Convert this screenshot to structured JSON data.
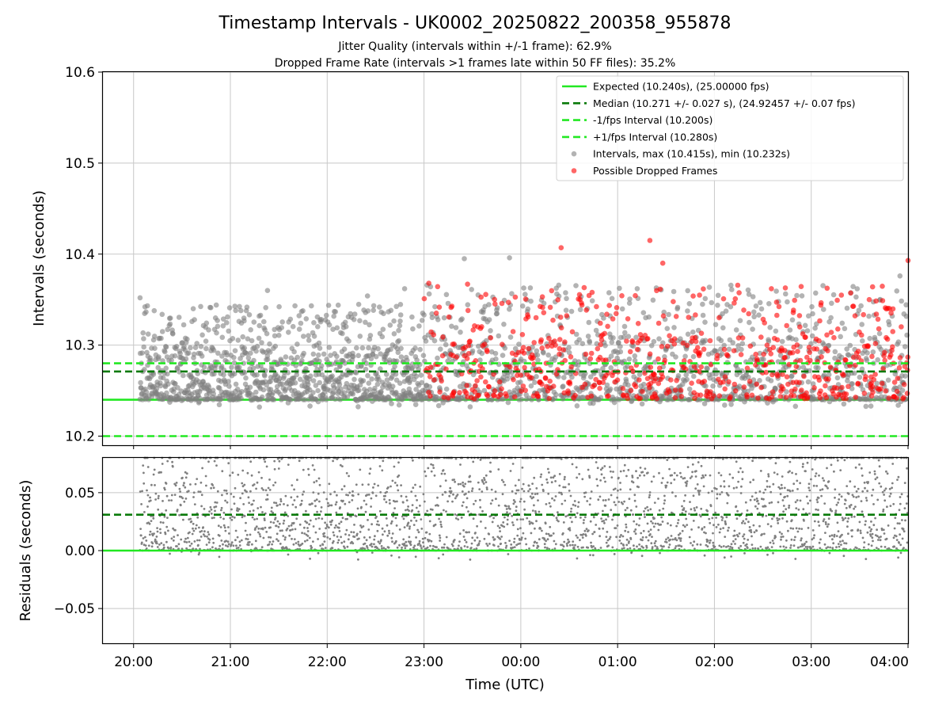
{
  "title": "Timestamp Intervals - UK0002_20250822_200358_955878",
  "subtitle_1": "Jitter Quality (intervals within +/-1 frame): 62.9%",
  "subtitle_2": "Dropped Frame Rate (intervals >1 frames late within 50 FF files): 35.2%",
  "colors": {
    "expected": "#22e822",
    "median": "#0a7a0a",
    "fps_interval": "#22e822",
    "intervals": "#808080",
    "dropped": "#ff0000",
    "grid": "#c8c8c8"
  },
  "chart_data": [
    {
      "type": "scatter",
      "panel": "top",
      "xlabel": "",
      "ylabel": "Intervals (seconds)",
      "xlim": [
        "19:41",
        "04:00"
      ],
      "ylim": [
        10.19,
        10.6
      ],
      "x_ticks": [
        "20:00",
        "21:00",
        "22:00",
        "23:00",
        "00:00",
        "01:00",
        "02:00",
        "03:00",
        "04:00"
      ],
      "y_ticks": [
        "10.2",
        "10.3",
        "10.4",
        "10.5",
        "10.6"
      ],
      "grid": true,
      "legend_position": "top-right",
      "reference_lines": [
        {
          "label": "Expected (10.240s), (25.00000 fps)",
          "y": 10.24,
          "style": "solid",
          "color_key": "expected"
        },
        {
          "label": "Median (10.271 +/- 0.027 s), (24.92457 +/- 0.07 fps)",
          "y": 10.271,
          "style": "dashed",
          "color_key": "median"
        },
        {
          "label": "-1/fps Interval (10.200s)",
          "y": 10.2,
          "style": "dashed",
          "color_key": "fps_interval"
        },
        {
          "label": "+1/fps Interval (10.280s)",
          "y": 10.28,
          "style": "dashed",
          "color_key": "fps_interval"
        }
      ],
      "series": [
        {
          "name": "Intervals, max (10.415s), min (10.232s)",
          "color_key": "intervals",
          "x_range": [
            "20:04",
            "04:00"
          ],
          "y_min": 10.232,
          "y_max": 10.415,
          "approx_point_count": 2810,
          "sample_points": [
            {
              "x": "20:04",
              "y": 10.352
            },
            {
              "x": "20:37",
              "y": 10.34
            },
            {
              "x": "21:23",
              "y": 10.36
            },
            {
              "x": "21:18",
              "y": 10.232
            },
            {
              "x": "22:25",
              "y": 10.354
            },
            {
              "x": "22:48",
              "y": 10.362
            },
            {
              "x": "23:25",
              "y": 10.395
            },
            {
              "x": "23:53",
              "y": 10.396
            },
            {
              "x": "03:37",
              "y": 10.233
            },
            {
              "x": "03:55",
              "y": 10.376
            }
          ]
        },
        {
          "name": "Possible Dropped Frames",
          "color_key": "dropped",
          "x_range": [
            "23:00",
            "04:00"
          ],
          "y_min": 10.24,
          "y_max": 10.415,
          "approx_point_count": 1000,
          "sample_points": [
            {
              "x": "23:03",
              "y": 10.368
            },
            {
              "x": "23:27",
              "y": 10.367
            },
            {
              "x": "00:25",
              "y": 10.407
            },
            {
              "x": "01:20",
              "y": 10.415
            },
            {
              "x": "01:28",
              "y": 10.39
            },
            {
              "x": "03:38",
              "y": 10.364
            },
            {
              "x": "04:00",
              "y": 10.393
            }
          ]
        }
      ]
    },
    {
      "type": "scatter",
      "panel": "bottom",
      "xlabel": "Time (UTC)",
      "ylabel": "Residuals (seconds)",
      "xlim": [
        "19:41",
        "04:00"
      ],
      "ylim": [
        -0.08,
        0.08
      ],
      "x_ticks": [
        "20:00",
        "21:00",
        "22:00",
        "23:00",
        "00:00",
        "01:00",
        "02:00",
        "03:00",
        "04:00"
      ],
      "y_ticks": [
        "−0.05",
        "0.00",
        "0.05"
      ],
      "grid": true,
      "reference_lines": [
        {
          "y": 0.0,
          "style": "solid",
          "color_key": "expected"
        },
        {
          "y": 0.031,
          "style": "dashed",
          "color_key": "median"
        }
      ],
      "series": [
        {
          "color_key": "intervals",
          "x_range": [
            "20:04",
            "04:00"
          ],
          "y_min": -0.008,
          "y_max": 0.08,
          "approx_point_count": 2810
        }
      ]
    }
  ]
}
